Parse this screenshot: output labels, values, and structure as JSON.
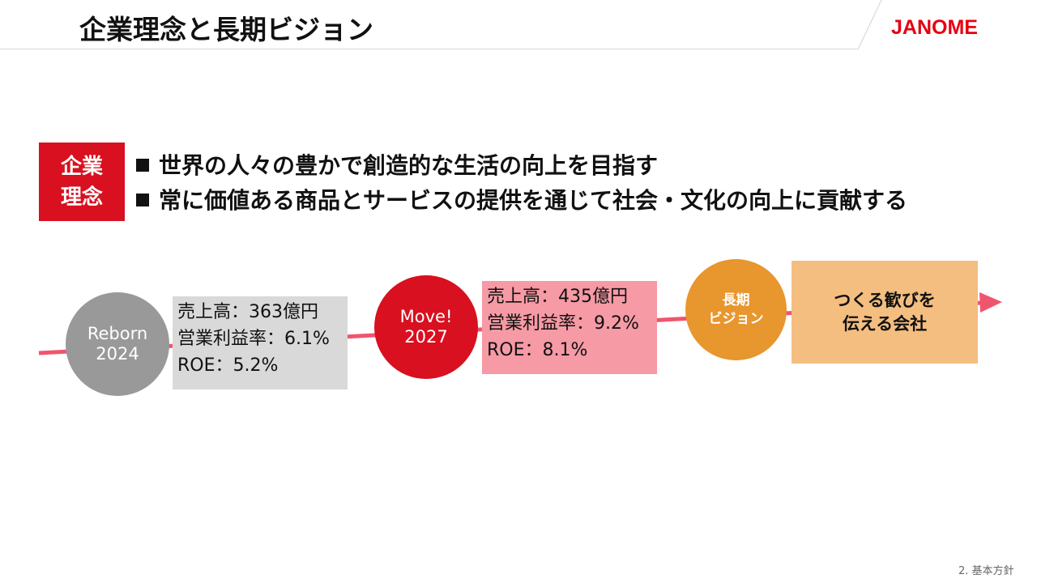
{
  "header": {
    "title": "企業理念と長期ビジョン",
    "logo_text": "JANOME"
  },
  "philosophy": {
    "badge_line1": "企業",
    "badge_line2": "理念",
    "items": [
      "世界の人々の豊かで創造的な生活の向上を目指す",
      "常に価値ある商品とサービスの提供を通じて社会・文化の向上に貢献する"
    ]
  },
  "timeline": {
    "line_color": "#f0556e",
    "milestones": [
      {
        "line1": "Reborn",
        "line2": "2024",
        "color": "#999999",
        "kpis": [
          "売上高：363億円",
          "営業利益率：6.1%",
          "ROE：5.2%"
        ],
        "kpi_bg": "#d9d9d9"
      },
      {
        "line1": "Move!",
        "line2": "2027",
        "color": "#d8101f",
        "kpis": [
          "売上高：435億円",
          "営業利益率：9.2%",
          "ROE：8.1%"
        ],
        "kpi_bg": "#f69aa5"
      },
      {
        "line1": "長期",
        "line2": "ビジョン",
        "color": "#e8962e",
        "vision_line1": "つくる歓びを",
        "vision_line2": "伝える会社",
        "vision_bg": "#f4be80"
      }
    ]
  },
  "footer": {
    "page_label": "2. 基本方針"
  },
  "colors": {
    "accent": "#d8101f",
    "brand": "#e60012"
  }
}
